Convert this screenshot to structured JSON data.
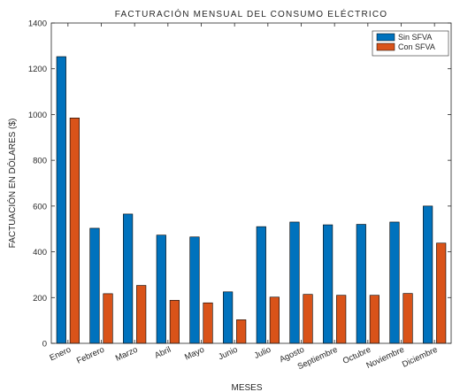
{
  "chart_data": {
    "type": "bar",
    "title": "FACTURACIÓN MENSUAL DEL CONSUMO ELÉCTRICO",
    "xlabel": "MESES",
    "ylabel": "FACTUACIÓN EN DÓLARES ($)",
    "categories": [
      "Enero",
      "Febrero",
      "Marzo",
      "Abril",
      "Mayo",
      "Junio",
      "Julio",
      "Agosto",
      "Septiembre",
      "Octubre",
      "Noviembre",
      "Diciembre"
    ],
    "series": [
      {
        "name": "Sin SFVA",
        "color": "#0072BD",
        "values": [
          1253,
          503,
          565,
          473,
          465,
          225,
          510,
          530,
          518,
          520,
          530,
          600
        ]
      },
      {
        "name": "Con SFVA",
        "color": "#D95319",
        "values": [
          985,
          217,
          253,
          188,
          177,
          103,
          202,
          214,
          210,
          210,
          218,
          438
        ]
      }
    ],
    "ylim": [
      0,
      1400
    ],
    "yticks": [
      0,
      200,
      400,
      600,
      800,
      1000,
      1200,
      1400
    ],
    "ytick_labels": [
      "0",
      "200",
      "400",
      "600",
      "800",
      "1000",
      "1200",
      "1400"
    ],
    "legend_position": "top-right",
    "grid": false
  }
}
